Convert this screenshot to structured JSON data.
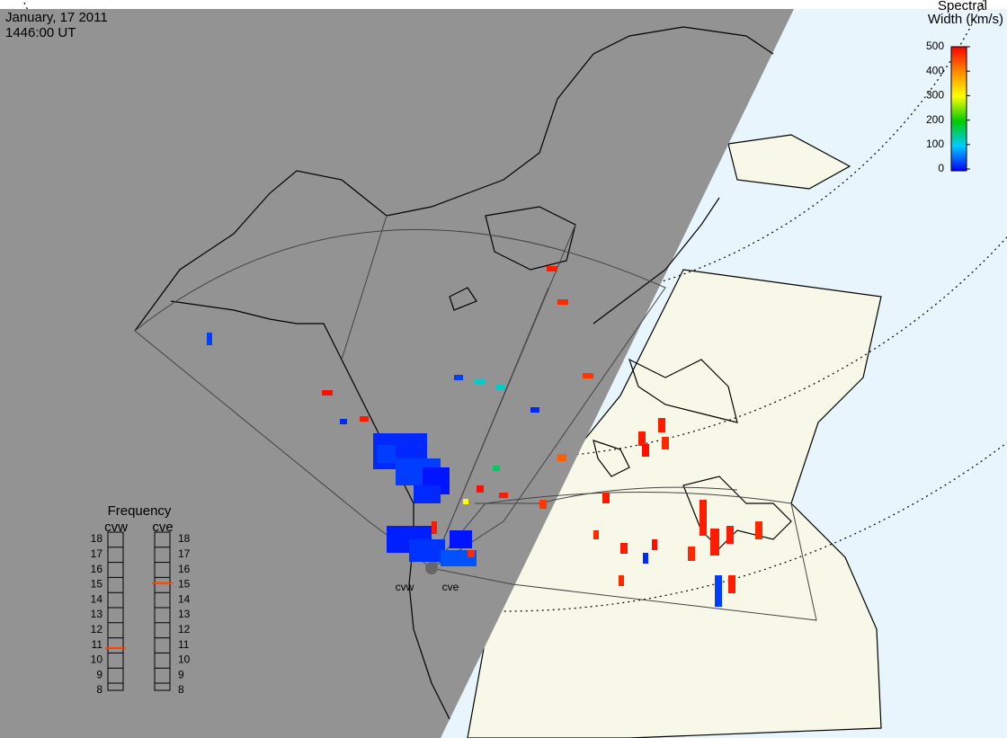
{
  "header": {
    "date": "January, 17 2011",
    "time": "1446:00 UT"
  },
  "colorbar": {
    "title": [
      "Spectral",
      "Width (km/s)"
    ],
    "lim": [
      0,
      500
    ],
    "ticks": [
      0,
      100,
      200,
      300,
      400,
      500
    ]
  },
  "frequency": {
    "title": "Frequency",
    "lim": [
      8,
      18
    ],
    "ticks": [
      8,
      9,
      10,
      11,
      12,
      13,
      14,
      15,
      16,
      17,
      18
    ],
    "radars": [
      {
        "name": "cvw",
        "value": 10.8
      },
      {
        "name": "cve",
        "value": 15.1
      }
    ]
  },
  "sites": [
    "cvw",
    "cve"
  ],
  "echoes": {
    "widths": [
      20,
      30,
      10,
      15,
      25,
      40,
      30,
      20,
      10,
      480,
      470,
      460,
      490,
      480,
      30,
      480,
      120,
      120,
      30,
      20,
      480,
      470,
      490,
      480,
      460,
      430,
      470,
      480,
      490,
      470,
      480,
      20,
      480,
      470,
      480,
      480,
      30,
      470,
      20,
      480,
      490,
      160,
      300,
      480,
      470
    ]
  }
}
